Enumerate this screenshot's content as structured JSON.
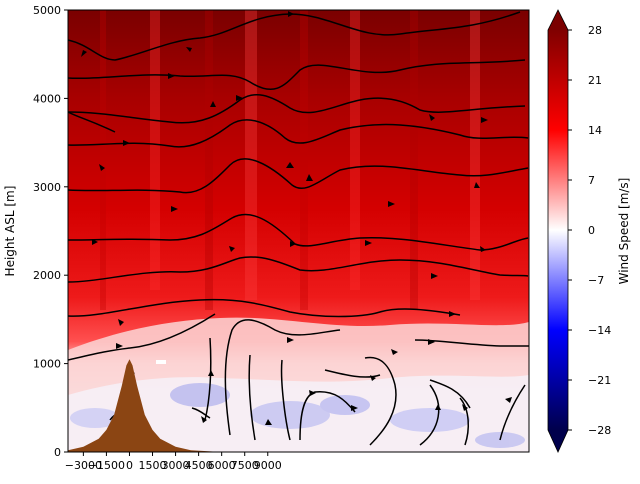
{
  "chart_data": {
    "type": "heatmap",
    "title": "",
    "xlabel": "",
    "ylabel": "Height ASL [m]",
    "xlim": [
      -4000,
      26000
    ],
    "ylim": [
      0,
      5000
    ],
    "x_ticks": [
      -3000,
      -1500,
      0,
      1500,
      3000,
      4500,
      6000,
      7500,
      9000
    ],
    "x_tick_labels": [
      "−3000",
      "−1500",
      "0",
      "1500",
      "3000",
      "4500",
      "6000",
      "7500",
      "9000"
    ],
    "y_ticks": [
      0,
      1000,
      2000,
      3000,
      4000,
      5000
    ],
    "y_tick_labels": [
      "0",
      "1000",
      "2000",
      "3000",
      "4000",
      "5000"
    ],
    "colorbar": {
      "label": "Wind Speed [m/s]",
      "colormap": "seismic",
      "range": [
        -28,
        28
      ],
      "ticks": [
        -28,
        -21,
        -14,
        -7,
        0,
        7,
        14,
        21,
        28
      ],
      "tick_labels": [
        "−28",
        "−21",
        "−14",
        "−7",
        "0",
        "7",
        "14",
        "21",
        "28"
      ],
      "extend": "both"
    },
    "field_description": "Horizontal wind speed; strong westerlies 14–28 m/s aloft increasing with height, weak/reversed flow (−5 to 5 m/s) below ~1200 m",
    "terrain": {
      "color": "#8b4513",
      "peak_height_m": 1050,
      "peak_x": 0,
      "profile": [
        [
          -6000,
          0
        ],
        [
          -4000,
          20
        ],
        [
          -3000,
          60
        ],
        [
          -2000,
          150
        ],
        [
          -1500,
          250
        ],
        [
          -1000,
          420
        ],
        [
          -500,
          750
        ],
        [
          -200,
          980
        ],
        [
          0,
          1050
        ],
        [
          200,
          980
        ],
        [
          500,
          750
        ],
        [
          1000,
          420
        ],
        [
          1500,
          250
        ],
        [
          2000,
          150
        ],
        [
          3000,
          60
        ],
        [
          4000,
          20
        ],
        [
          6000,
          0
        ],
        [
          26000,
          0
        ]
      ]
    },
    "streamlines": true
  }
}
